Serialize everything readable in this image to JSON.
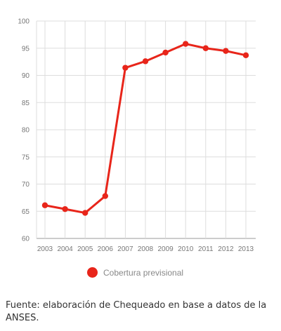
{
  "chart_data": {
    "type": "line",
    "x": [
      "2003",
      "2004",
      "2005",
      "2006",
      "2007",
      "2008",
      "2009",
      "2010",
      "2011",
      "2012",
      "2013"
    ],
    "series": [
      {
        "name": "Cobertura previsional",
        "values": [
          66.1,
          65.4,
          64.7,
          67.8,
          91.4,
          92.6,
          94.2,
          95.8,
          95.0,
          94.5,
          93.7
        ]
      }
    ],
    "y_ticks": [
      60,
      65,
      70,
      75,
      80,
      85,
      90,
      95,
      100
    ],
    "ylim": [
      60,
      100
    ],
    "grid": true,
    "legend_position": "bottom",
    "colors": {
      "series": "#e8251a",
      "grid": "#dddddd",
      "axis": "#999999",
      "tick_label": "#777777"
    }
  },
  "source_note": "Fuente: elaboración de Chequeado en base a datos de la ANSES."
}
